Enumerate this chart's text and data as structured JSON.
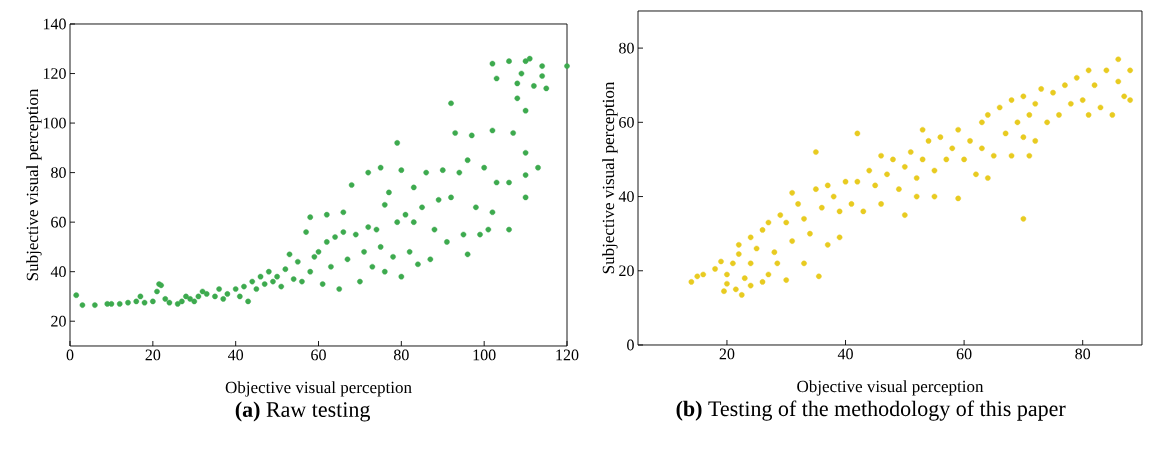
{
  "chart_data": [
    {
      "type": "scatter",
      "xlabel": "Objective visual perception",
      "ylabel": "Subjective visual perception",
      "annotations": [
        "**(a)** Raw testing"
      ],
      "xlim": [
        0,
        120
      ],
      "ylim": [
        10,
        140
      ],
      "xticks": [
        0,
        20,
        40,
        60,
        80,
        100,
        120
      ],
      "yticks": [
        20,
        40,
        60,
        80,
        100,
        120,
        140
      ],
      "grid": false,
      "marker": "circle",
      "series": [
        {
          "color": "#3daa4e",
          "x": [
            1.5,
            3,
            6,
            9,
            10,
            12,
            14,
            16,
            17,
            18,
            20,
            21,
            21.5,
            22,
            23,
            24,
            26,
            27,
            28,
            29,
            30,
            31,
            32,
            33,
            35,
            36,
            37,
            38,
            40,
            41,
            42,
            43,
            44,
            45,
            46,
            47,
            48,
            49,
            50,
            51,
            52,
            53,
            54,
            55,
            56,
            57,
            58,
            58,
            59,
            60,
            61,
            62,
            62,
            63,
            64,
            65,
            66,
            66,
            67,
            68,
            69,
            70,
            71,
            72,
            72,
            73,
            74,
            75,
            75,
            76,
            76,
            77,
            78,
            79,
            79,
            80,
            80,
            81,
            82,
            83,
            83,
            84,
            85,
            86,
            87,
            88,
            89,
            90,
            91,
            92,
            92,
            93,
            94,
            95,
            96,
            96,
            97,
            98,
            99,
            100,
            101,
            102,
            102,
            102,
            103,
            103,
            106,
            106,
            106,
            107,
            108,
            108,
            109,
            110,
            110,
            110,
            110,
            110,
            111,
            112,
            113,
            114,
            114,
            115,
            120
          ],
          "values": [
            30.5,
            26.5,
            26.5,
            27,
            27,
            27,
            27.5,
            28,
            30,
            27.5,
            28,
            32,
            35,
            34.5,
            29,
            27.5,
            27,
            28,
            30,
            29,
            28,
            30,
            32,
            31,
            30,
            33,
            29,
            31,
            33,
            30,
            34,
            28,
            36,
            33,
            38,
            35,
            40,
            36,
            38,
            34,
            41,
            47,
            37,
            44,
            36,
            56,
            62,
            40,
            46,
            48,
            35,
            52,
            63,
            42,
            54,
            33,
            64,
            56,
            45,
            75,
            55,
            36,
            48,
            80,
            58,
            42,
            57,
            82,
            50,
            40,
            67,
            72,
            46,
            92,
            60,
            81,
            38,
            63,
            48,
            74,
            60,
            43,
            66,
            80,
            45,
            57,
            69,
            81,
            52,
            108,
            70,
            96,
            80,
            55,
            85,
            47,
            95,
            66,
            55,
            82,
            57,
            124,
            97,
            64,
            118,
            76,
            125,
            57,
            76,
            96,
            116,
            110,
            120,
            125,
            79,
            105,
            88,
            70,
            126,
            115,
            82,
            123,
            119,
            114,
            123
          ]
        }
      ]
    },
    {
      "type": "scatter",
      "xlabel": "Objective visual perception",
      "ylabel": "Subjective visual perception",
      "annotations": [
        "**(b)** Testing of the methodology of this paper"
      ],
      "xlim": [
        5,
        90
      ],
      "ylim": [
        0,
        90
      ],
      "xticks": [
        20,
        40,
        60,
        80
      ],
      "yticks": [
        0,
        20,
        40,
        60,
        80
      ],
      "grid": false,
      "marker": "circle",
      "series": [
        {
          "color": "#e8cb20",
          "x": [
            14,
            15,
            16,
            18,
            19,
            19.5,
            20,
            20,
            21,
            21.5,
            22,
            22,
            22.5,
            23,
            24,
            24,
            24,
            25,
            26,
            26,
            27,
            27,
            28,
            28.5,
            29,
            30,
            30,
            31,
            31,
            32,
            33,
            33,
            34,
            35,
            35,
            35.5,
            36,
            37,
            37,
            38,
            39,
            39,
            40,
            41,
            42,
            42,
            43,
            44,
            45,
            46,
            46,
            47,
            48,
            49,
            50,
            50,
            51,
            52,
            52,
            53,
            53,
            54,
            55,
            55,
            56,
            57,
            58,
            59,
            59,
            60,
            61,
            62,
            63,
            63,
            64,
            64,
            65,
            66,
            67,
            68,
            68,
            69,
            70,
            70,
            70,
            71,
            71,
            72,
            72,
            73,
            74,
            75,
            76,
            77,
            78,
            79,
            80,
            81,
            81,
            82,
            83,
            84,
            85,
            86,
            86,
            87,
            88,
            88
          ],
          "values": [
            17,
            18.5,
            19,
            20.5,
            22.5,
            14.5,
            16.5,
            19,
            22,
            15,
            24.5,
            27,
            13.5,
            18,
            29,
            22,
            16,
            26,
            31,
            17,
            33,
            19,
            25,
            22,
            35,
            33,
            17.5,
            41,
            28,
            38,
            22,
            34,
            30,
            42,
            52,
            18.5,
            37,
            43,
            27,
            40,
            36,
            29,
            44,
            38,
            57,
            44,
            36,
            47,
            43,
            51,
            38,
            46,
            50,
            42,
            35,
            48,
            52,
            45,
            40,
            58,
            50,
            55,
            47,
            40,
            56,
            50,
            53,
            58,
            39.5,
            50,
            55,
            46,
            60,
            53,
            62,
            45,
            51,
            64,
            57,
            66,
            51,
            60,
            34,
            67,
            56,
            62,
            51,
            65,
            55,
            69,
            60,
            68,
            62,
            70,
            65,
            72,
            66,
            74,
            62,
            70,
            64,
            74,
            62,
            71,
            77,
            67,
            74,
            66
          ]
        }
      ]
    }
  ]
}
